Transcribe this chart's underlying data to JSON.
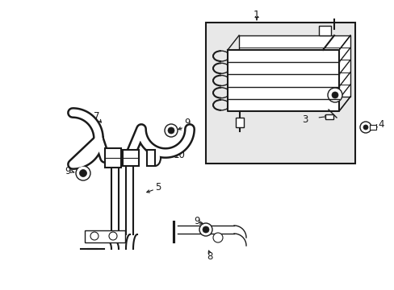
{
  "bg_color": "#ffffff",
  "line_color": "#1a1a1a",
  "box_bg": "#e8e8e8",
  "fig_width": 4.89,
  "fig_height": 3.6,
  "dpi": 100
}
